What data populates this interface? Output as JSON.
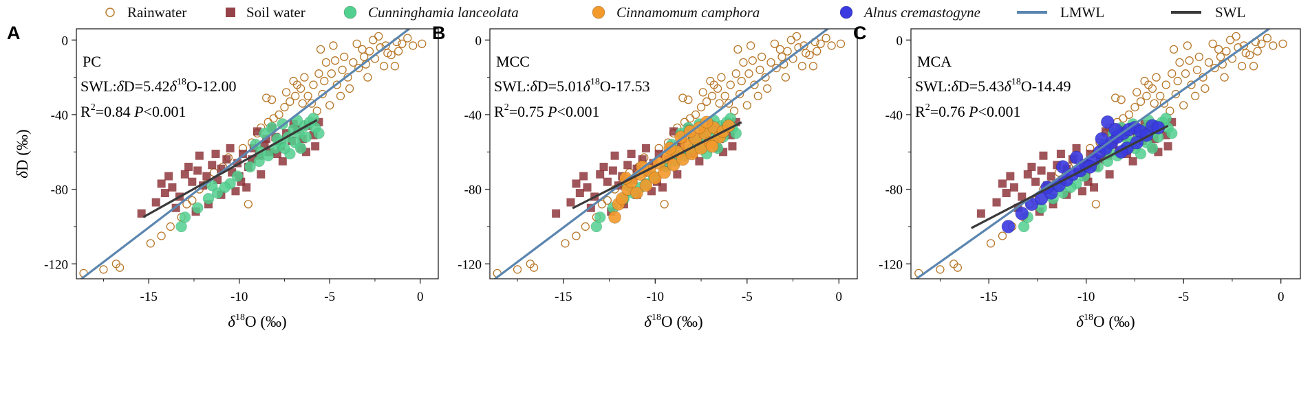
{
  "legend": {
    "items": [
      {
        "key": "rain",
        "label": "Rainwater",
        "italic": false
      },
      {
        "key": "soil",
        "label": "Soil water",
        "italic": false
      },
      {
        "key": "cl",
        "label": "Cunninghamia lanceolata",
        "italic": true
      },
      {
        "key": "cc",
        "label": "Cinnamomum camphora",
        "italic": true
      },
      {
        "key": "ac",
        "label": "Alnus cremastogyne",
        "italic": true
      },
      {
        "key": "lmwl",
        "label": "LMWL",
        "italic": false
      },
      {
        "key": "swl",
        "label": "SWL",
        "italic": false
      }
    ]
  },
  "colors": {
    "rain": "#b8782a",
    "soil": "#8a2f35",
    "cl": "#52d08f",
    "cc": "#f39a2c",
    "ac": "#3a3ae0",
    "lmwl": "#5b86b0",
    "swl": "#3a3a3a"
  },
  "chart_data": [
    {
      "panel": "A",
      "type": "scatter",
      "site": "PC",
      "species_key": "cl",
      "swl": {
        "prefix": "SWL:",
        "delta": "δ",
        "mid": "D=5.42",
        "sup": "18",
        "tail": "O-12.00",
        "slope": 5.42,
        "intercept": -12.0,
        "x_range": [
          -15.3,
          -5.7
        ]
      },
      "r2": {
        "pre": "R",
        "sup": "2",
        "post": "=0.84",
        "p_label": "P",
        "p_text": "<0.001"
      },
      "lmwl": {
        "slope": 7.4,
        "intercept": 10.5
      },
      "xlim": [
        -19,
        1
      ],
      "ylim": [
        -128,
        6
      ],
      "xticks": [
        -15,
        -10,
        -5,
        0
      ],
      "yticks": [
        0,
        -40,
        -80,
        -120
      ],
      "xlabel": {
        "delta": "δ",
        "sup": "18",
        "tail": "O (‰)"
      },
      "ylabel": "δD (‰)",
      "show_ylabel": true
    },
    {
      "panel": "B",
      "type": "scatter",
      "site": "MCC",
      "species_key": "cc",
      "swl": {
        "prefix": "SWL:",
        "delta": "δ",
        "mid": "D=5.01",
        "sup": "18",
        "tail": "O-17.53",
        "slope": 5.01,
        "intercept": -17.53,
        "x_range": [
          -14.5,
          -5.3
        ]
      },
      "r2": {
        "pre": "R",
        "sup": "2",
        "post": "=0.75",
        "p_label": "P",
        "p_text": "<0.001"
      },
      "lmwl": {
        "slope": 7.4,
        "intercept": 10.5
      },
      "xlim": [
        -19,
        1
      ],
      "ylim": [
        -128,
        6
      ],
      "xticks": [
        -15,
        -10,
        -5,
        0
      ],
      "yticks": [
        0,
        -40,
        -80,
        -120
      ],
      "xlabel": {
        "delta": "δ",
        "sup": "18",
        "tail": "O (‰)"
      },
      "ylabel": "δD (‰)",
      "show_ylabel": false
    },
    {
      "panel": "C",
      "type": "scatter",
      "site": "MCA",
      "species_key": "ac",
      "swl": {
        "prefix": "SWL:",
        "delta": "δ",
        "mid": "D=5.43",
        "sup": "18",
        "tail": "O-14.49",
        "slope": 5.43,
        "intercept": -14.49,
        "x_range": [
          -15.9,
          -5.8
        ]
      },
      "r2": {
        "pre": "R",
        "sup": "2",
        "post": "=0.76",
        "p_label": "P",
        "p_text": "<0.001"
      },
      "lmwl": {
        "slope": 7.4,
        "intercept": 10.5
      },
      "xlim": [
        -19,
        1
      ],
      "ylim": [
        -128,
        6
      ],
      "xticks": [
        -15,
        -10,
        -5,
        0
      ],
      "yticks": [
        0,
        -40,
        -80,
        -120
      ],
      "xlabel": {
        "delta": "δ",
        "sup": "18",
        "tail": "O (‰)"
      },
      "ylabel": "δD (‰)",
      "show_ylabel": false
    }
  ],
  "series_samples": {
    "rain": [
      [
        -18.6,
        -125
      ],
      [
        -17.5,
        -123
      ],
      [
        -16.8,
        -120
      ],
      [
        -16.6,
        -122
      ],
      [
        -14.9,
        -109
      ],
      [
        -14.3,
        -105
      ],
      [
        -13.8,
        -100
      ],
      [
        -13.2,
        -95
      ],
      [
        -12.9,
        -88
      ],
      [
        -12.6,
        -86
      ],
      [
        -12.2,
        -80
      ],
      [
        -11.8,
        -77
      ],
      [
        -11.4,
        -71
      ],
      [
        -10.9,
        -68
      ],
      [
        -10.6,
        -63
      ],
      [
        -9.5,
        -88
      ],
      [
        -9.8,
        -58
      ],
      [
        -9.3,
        -55
      ],
      [
        -9.0,
        -50
      ],
      [
        -8.8,
        -47
      ],
      [
        -8.4,
        -44
      ],
      [
        -8.1,
        -42
      ],
      [
        -7.8,
        -40
      ],
      [
        -8.5,
        -31
      ],
      [
        -8.2,
        -32
      ],
      [
        -7.5,
        -36
      ],
      [
        -7.2,
        -33
      ],
      [
        -6.9,
        -30
      ],
      [
        -6.6,
        -26
      ],
      [
        -6.2,
        -30
      ],
      [
        -6.0,
        -34
      ],
      [
        -5.7,
        -38
      ],
      [
        -5.4,
        -29
      ],
      [
        -5.0,
        -35
      ],
      [
        -5.3,
        -22
      ],
      [
        -4.9,
        -18
      ],
      [
        -4.6,
        -24
      ],
      [
        -4.3,
        -16
      ],
      [
        -4.0,
        -20
      ],
      [
        -3.7,
        -12
      ],
      [
        -3.4,
        -15
      ],
      [
        -3.1,
        -9
      ],
      [
        -2.8,
        -6
      ],
      [
        -2.5,
        -10
      ],
      [
        -2.2,
        -4
      ],
      [
        -1.9,
        -3
      ],
      [
        -1.6,
        -8
      ],
      [
        -1.3,
        -1
      ],
      [
        -1.0,
        -2
      ],
      [
        -0.7,
        1
      ],
      [
        -0.4,
        -3
      ],
      [
        0.1,
        -2
      ],
      [
        -5.6,
        -18
      ],
      [
        -5.9,
        -24
      ],
      [
        -6.4,
        -20
      ],
      [
        -6.8,
        -24
      ],
      [
        -7.4,
        -28
      ],
      [
        -4.2,
        -9
      ],
      [
        -3.2,
        -5
      ],
      [
        -2.0,
        -14
      ],
      [
        -1.4,
        -14
      ],
      [
        -2.9,
        -20
      ],
      [
        -3.9,
        -26
      ],
      [
        -4.7,
        -11
      ],
      [
        -5.2,
        -12
      ],
      [
        -4.4,
        -30
      ],
      [
        -3.5,
        -2
      ],
      [
        -2.6,
        0
      ],
      [
        -1.8,
        -7
      ],
      [
        -6.5,
        -34
      ],
      [
        -7.0,
        -22
      ],
      [
        -4.8,
        -3
      ],
      [
        -3.0,
        -13
      ],
      [
        -5.5,
        -5
      ],
      [
        -2.3,
        2
      ],
      [
        -1.2,
        -6
      ]
    ],
    "soil": [
      [
        -15.4,
        -93
      ],
      [
        -14.6,
        -87
      ],
      [
        -14.1,
        -82
      ],
      [
        -13.7,
        -79
      ],
      [
        -13.3,
        -84
      ],
      [
        -13.0,
        -72
      ],
      [
        -12.6,
        -76
      ],
      [
        -12.3,
        -70
      ],
      [
        -12.0,
        -78
      ],
      [
        -11.8,
        -73
      ],
      [
        -11.5,
        -67
      ],
      [
        -11.2,
        -75
      ],
      [
        -11.0,
        -69
      ],
      [
        -10.7,
        -64
      ],
      [
        -10.4,
        -71
      ],
      [
        -10.1,
        -66
      ],
      [
        -9.8,
        -61
      ],
      [
        -9.5,
        -68
      ],
      [
        -9.2,
        -58
      ],
      [
        -8.9,
        -62
      ],
      [
        -8.6,
        -56
      ],
      [
        -8.3,
        -60
      ],
      [
        -8.0,
        -52
      ],
      [
        -7.7,
        -57
      ],
      [
        -7.4,
        -50
      ],
      [
        -7.1,
        -54
      ],
      [
        -6.8,
        -48
      ],
      [
        -6.5,
        -53
      ],
      [
        -6.2,
        -46
      ],
      [
        -5.9,
        -51
      ],
      [
        -5.6,
        -44
      ],
      [
        -9.0,
        -49
      ],
      [
        -8.2,
        -47
      ],
      [
        -10.5,
        -58
      ],
      [
        -12.8,
        -68
      ],
      [
        -13.9,
        -73
      ],
      [
        -11.7,
        -88
      ],
      [
        -12.4,
        -92
      ],
      [
        -10.2,
        -81
      ],
      [
        -9.6,
        -79
      ],
      [
        -7.6,
        -65
      ],
      [
        -6.3,
        -60
      ],
      [
        -5.8,
        -57
      ],
      [
        -8.8,
        -72
      ],
      [
        -12.2,
        -62
      ],
      [
        -13.5,
        -90
      ],
      [
        -11.0,
        -83
      ],
      [
        -10.0,
        -73
      ],
      [
        -9.3,
        -64
      ],
      [
        -7.0,
        -45
      ],
      [
        -6.6,
        -58
      ],
      [
        -14.3,
        -77
      ],
      [
        -8.5,
        -53
      ],
      [
        -11.3,
        -61
      ],
      [
        -9.9,
        -76
      ],
      [
        -7.9,
        -61
      ]
    ],
    "cl": [
      [
        -13.2,
        -100
      ],
      [
        -13.0,
        -95
      ],
      [
        -12.3,
        -90
      ],
      [
        -11.7,
        -85
      ],
      [
        -11.2,
        -82
      ],
      [
        -10.5,
        -77
      ],
      [
        -10.1,
        -73
      ],
      [
        -9.4,
        -68
      ],
      [
        -8.9,
        -65
      ],
      [
        -8.4,
        -62
      ],
      [
        -8.0,
        -58
      ],
      [
        -7.7,
        -55
      ],
      [
        -7.3,
        -52
      ],
      [
        -7.0,
        -48
      ],
      [
        -6.7,
        -50
      ],
      [
        -6.4,
        -46
      ],
      [
        -6.1,
        -44
      ],
      [
        -5.8,
        -47
      ],
      [
        -5.6,
        -50
      ],
      [
        -8.6,
        -50
      ],
      [
        -8.2,
        -47
      ],
      [
        -7.6,
        -45
      ],
      [
        -7.9,
        -53
      ],
      [
        -6.9,
        -55
      ],
      [
        -6.6,
        -58
      ],
      [
        -9.1,
        -56
      ],
      [
        -8.8,
        -60
      ],
      [
        -7.2,
        -61
      ],
      [
        -6.3,
        -52
      ],
      [
        -5.9,
        -42
      ],
      [
        -6.8,
        -43
      ],
      [
        -7.5,
        -58
      ],
      [
        -10.8,
        -79
      ],
      [
        -11.5,
        -78
      ]
    ],
    "cc": [
      [
        -12.2,
        -95
      ],
      [
        -12.0,
        -88
      ],
      [
        -11.8,
        -85
      ],
      [
        -11.5,
        -80
      ],
      [
        -11.3,
        -76
      ],
      [
        -11.0,
        -82
      ],
      [
        -10.8,
        -72
      ],
      [
        -10.5,
        -78
      ],
      [
        -10.3,
        -70
      ],
      [
        -10.0,
        -74
      ],
      [
        -9.8,
        -66
      ],
      [
        -9.5,
        -71
      ],
      [
        -9.3,
        -63
      ],
      [
        -9.0,
        -67
      ],
      [
        -8.8,
        -60
      ],
      [
        -8.5,
        -64
      ],
      [
        -8.3,
        -56
      ],
      [
        -8.0,
        -61
      ],
      [
        -7.8,
        -53
      ],
      [
        -7.5,
        -58
      ],
      [
        -7.3,
        -50
      ],
      [
        -7.0,
        -55
      ],
      [
        -6.8,
        -47
      ],
      [
        -6.5,
        -52
      ],
      [
        -6.3,
        -49
      ],
      [
        -6.0,
        -46
      ],
      [
        -8.6,
        -52
      ],
      [
        -8.1,
        -49
      ],
      [
        -7.6,
        -47
      ],
      [
        -9.2,
        -58
      ],
      [
        -7.2,
        -44
      ],
      [
        -6.9,
        -57
      ],
      [
        -10.7,
        -68
      ],
      [
        -11.6,
        -74
      ]
    ],
    "ac": [
      [
        -14.0,
        -100
      ],
      [
        -13.3,
        -93
      ],
      [
        -12.8,
        -88
      ],
      [
        -12.3,
        -85
      ],
      [
        -11.8,
        -82
      ],
      [
        -11.4,
        -78
      ],
      [
        -11.0,
        -75
      ],
      [
        -10.7,
        -72
      ],
      [
        -10.3,
        -70
      ],
      [
        -10.0,
        -67
      ],
      [
        -9.6,
        -64
      ],
      [
        -9.3,
        -60
      ],
      [
        -9.0,
        -58
      ],
      [
        -8.7,
        -55
      ],
      [
        -8.4,
        -52
      ],
      [
        -8.1,
        -50
      ],
      [
        -7.8,
        -48
      ],
      [
        -7.5,
        -47
      ],
      [
        -7.2,
        -49
      ],
      [
        -6.9,
        -51
      ],
      [
        -6.6,
        -46
      ],
      [
        -8.9,
        -44
      ],
      [
        -8.5,
        -48
      ],
      [
        -9.8,
        -68
      ],
      [
        -10.5,
        -63
      ],
      [
        -7.9,
        -58
      ],
      [
        -7.4,
        -55
      ],
      [
        -9.2,
        -53
      ],
      [
        -8.2,
        -60
      ],
      [
        -11.2,
        -68
      ],
      [
        -12.0,
        -79
      ],
      [
        -6.3,
        -47
      ]
    ]
  }
}
